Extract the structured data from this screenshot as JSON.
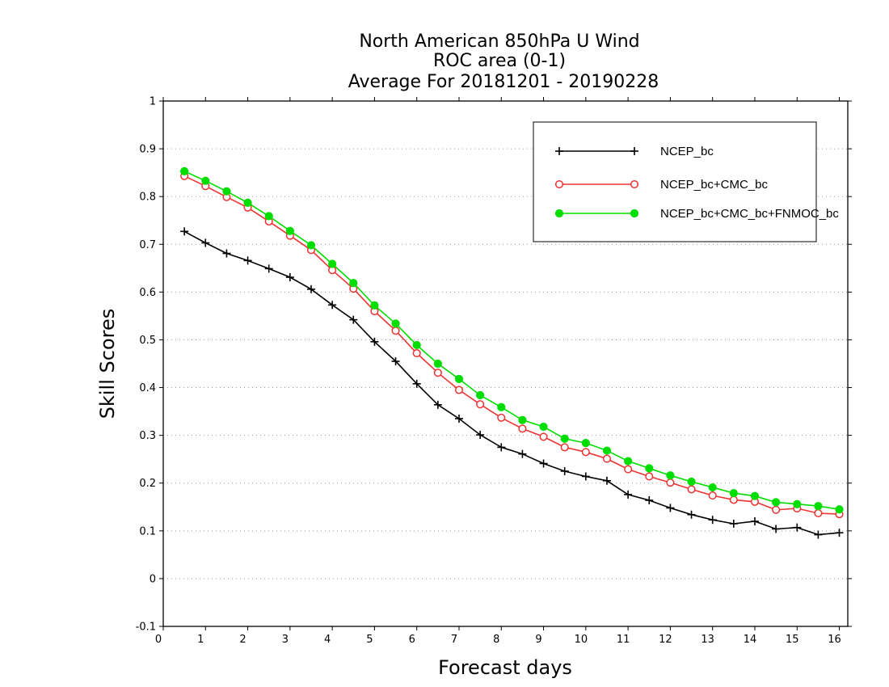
{
  "chart_data": {
    "type": "line",
    "title": [
      "North American 850hPa U Wind",
      "ROC area (0-1)",
      "Average For 20181201 - 20190228"
    ],
    "xlabel": "Forecast days",
    "ylabel": "Skill Scores",
    "xlim": [
      0,
      16.2
    ],
    "ylim": [
      -0.1,
      1
    ],
    "xticks": [
      0,
      1,
      2,
      3,
      4,
      5,
      6,
      7,
      8,
      9,
      10,
      11,
      12,
      13,
      14,
      15,
      16
    ],
    "xtick_labels": [
      "0",
      "1",
      "2",
      "3",
      "4",
      "5",
      "6",
      "7",
      "8",
      "9",
      "10",
      "11",
      "12",
      "13",
      "14",
      "15",
      "16"
    ],
    "yticks": [
      -0.1,
      0,
      0.1,
      0.2,
      0.3,
      0.4,
      0.5,
      0.6,
      0.7,
      0.8,
      0.9,
      1
    ],
    "ytick_labels": [
      "-0.1",
      "0",
      "0.1",
      "0.2",
      "0.3",
      "0.4",
      "0.5",
      "0.6",
      "0.7",
      "0.8",
      "0.9",
      "1"
    ],
    "grid": "horizontal dotted",
    "legend_position": "top-right",
    "x": [
      0.5,
      1,
      1.5,
      2,
      2.5,
      3,
      3.5,
      4,
      4.5,
      5,
      5.5,
      6,
      6.5,
      7,
      7.5,
      8,
      8.5,
      9,
      9.5,
      10,
      10.5,
      11,
      11.5,
      12,
      12.5,
      13,
      13.5,
      14,
      14.5,
      15,
      15.5,
      16
    ],
    "series": [
      {
        "name": "NCEP_bc",
        "color": "#000000",
        "marker": "plus",
        "values": [
          0.727,
          0.703,
          0.681,
          0.666,
          0.649,
          0.631,
          0.606,
          0.573,
          0.542,
          0.496,
          0.455,
          0.408,
          0.364,
          0.335,
          0.301,
          0.275,
          0.261,
          0.241,
          0.225,
          0.214,
          0.205,
          0.176,
          0.164,
          0.148,
          0.134,
          0.123,
          0.115,
          0.12,
          0.104,
          0.107,
          0.092,
          0.096
        ]
      },
      {
        "name": "NCEP_bc+CMC_bc",
        "color": "#ee3333",
        "marker": "open-circle",
        "values": [
          0.843,
          0.822,
          0.799,
          0.777,
          0.748,
          0.718,
          0.688,
          0.646,
          0.607,
          0.56,
          0.519,
          0.472,
          0.431,
          0.395,
          0.365,
          0.337,
          0.314,
          0.297,
          0.275,
          0.265,
          0.251,
          0.229,
          0.214,
          0.201,
          0.187,
          0.174,
          0.165,
          0.161,
          0.144,
          0.147,
          0.137,
          0.135
        ]
      },
      {
        "name": "NCEP_bc+CMC_bc+FNMOC_bc",
        "color": "#00dd00",
        "marker": "filled-circle",
        "values": [
          0.853,
          0.833,
          0.811,
          0.787,
          0.759,
          0.728,
          0.698,
          0.659,
          0.619,
          0.572,
          0.534,
          0.489,
          0.45,
          0.418,
          0.384,
          0.359,
          0.332,
          0.318,
          0.293,
          0.284,
          0.268,
          0.246,
          0.231,
          0.216,
          0.203,
          0.191,
          0.179,
          0.173,
          0.16,
          0.156,
          0.152,
          0.145
        ]
      }
    ]
  }
}
